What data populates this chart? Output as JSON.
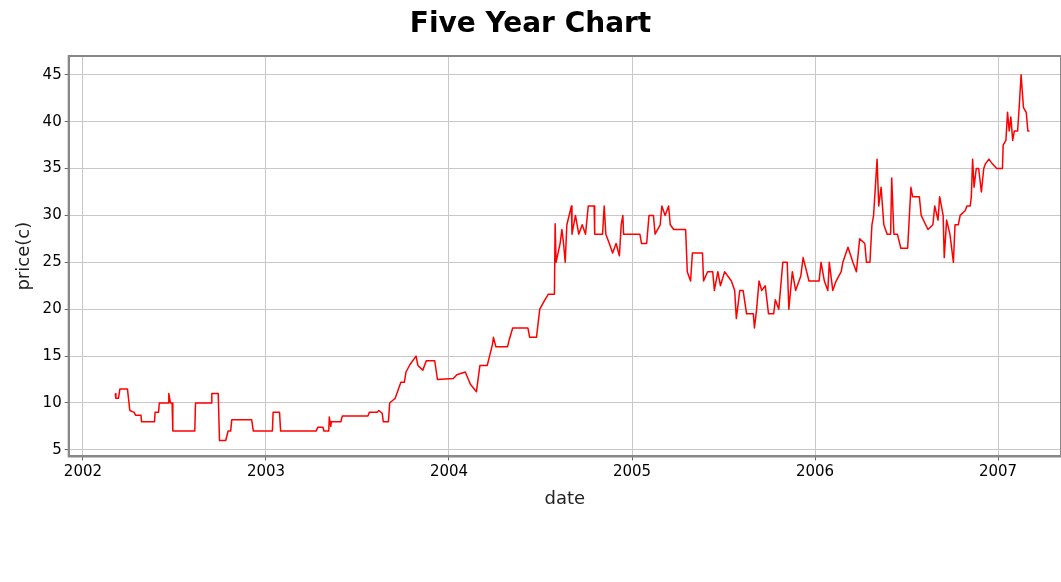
{
  "chart_data": {
    "type": "line",
    "title": "Five Year Chart",
    "xlabel": "date",
    "ylabel": "price(c)",
    "color": "#ff0000",
    "x": [
      2002.176,
      2002.18,
      2002.194,
      2002.202,
      2002.243,
      2002.256,
      2002.28,
      2002.287,
      2002.317,
      2002.32,
      2002.391,
      2002.394,
      2002.413,
      2002.417,
      2002.465,
      2002.469,
      2002.478,
      2002.487,
      2002.491,
      2002.611,
      2002.615,
      2002.7,
      2002.704,
      2002.739,
      2002.746,
      2002.78,
      2002.793,
      2002.807,
      2002.813,
      2002.922,
      2002.931,
      2003.035,
      2003.039,
      2003.074,
      2003.08,
      2003.274,
      2003.283,
      2003.311,
      2003.317,
      2003.343,
      2003.346,
      2003.354,
      2003.357,
      2003.409,
      2003.417,
      2003.557,
      2003.565,
      2003.607,
      2003.617,
      2003.635,
      2003.641,
      2003.669,
      2003.676,
      2003.706,
      2003.737,
      2003.756,
      2003.765,
      2003.787,
      2003.82,
      2003.83,
      2003.857,
      2003.876,
      2003.922,
      2003.937,
      2004.024,
      2004.043,
      2004.089,
      2004.117,
      2004.15,
      2004.169,
      2004.209,
      2004.237,
      2004.243,
      2004.256,
      2004.32,
      2004.33,
      2004.348,
      2004.431,
      2004.441,
      2004.478,
      2004.496,
      2004.524,
      2004.543,
      2004.576,
      2004.58,
      2004.585,
      2004.607,
      2004.617,
      2004.626,
      2004.635,
      2004.644,
      2004.669,
      2004.672,
      2004.691,
      2004.709,
      2004.728,
      2004.746,
      2004.761,
      2004.793,
      2004.796,
      2004.839,
      2004.848,
      2004.857,
      2004.876,
      2004.894,
      2004.913,
      2004.931,
      2004.941,
      2004.95,
      2004.954,
      2005.043,
      2005.052,
      2005.08,
      2005.093,
      2005.117,
      2005.126,
      2005.154,
      2005.163,
      2005.181,
      2005.2,
      2005.209,
      2005.228,
      2005.293,
      2005.302,
      2005.32,
      2005.33,
      2005.385,
      2005.391,
      2005.413,
      2005.441,
      2005.45,
      2005.469,
      2005.483,
      2005.506,
      2005.543,
      2005.561,
      2005.57,
      2005.589,
      2005.607,
      2005.626,
      2005.663,
      2005.669,
      2005.681,
      2005.694,
      2005.709,
      2005.728,
      2005.746,
      2005.774,
      2005.783,
      2005.802,
      2005.824,
      2005.848,
      2005.857,
      2005.876,
      2005.894,
      2005.922,
      2005.935,
      2005.967,
      2006.022,
      2006.033,
      2006.051,
      2006.07,
      2006.078,
      2006.097,
      2006.115,
      2006.143,
      2006.152,
      2006.18,
      2006.207,
      2006.226,
      2006.244,
      2006.272,
      2006.281,
      2006.3,
      2006.311,
      2006.32,
      2006.339,
      2006.348,
      2006.361,
      2006.376,
      2006.394,
      2006.413,
      2006.419,
      2006.431,
      2006.45,
      2006.469,
      2006.506,
      2006.524,
      2006.533,
      2006.57,
      2006.58,
      2006.617,
      2006.644,
      2006.654,
      2006.672,
      2006.681,
      2006.7,
      2006.706,
      2006.719,
      2006.737,
      2006.756,
      2006.765,
      2006.783,
      2006.793,
      2006.82,
      2006.83,
      2006.848,
      2006.854,
      2006.861,
      2006.869,
      2006.881,
      2006.894,
      2006.909,
      2006.922,
      2006.931,
      2006.95,
      2006.969,
      2006.993,
      2007.024,
      2007.028,
      2007.043,
      2007.052,
      2007.061,
      2007.07,
      2007.08,
      2007.089,
      2007.107,
      2007.117,
      2007.126,
      2007.139,
      2007.154,
      2007.163,
      2007.172
    ],
    "values": [
      11,
      10.5,
      10.5,
      11.5,
      11.5,
      9.2,
      9,
      8.7,
      8.7,
      8,
      8,
      9,
      9,
      10,
      10,
      11,
      10,
      10,
      7,
      7,
      10,
      10,
      11,
      11,
      6,
      6,
      7,
      7,
      8.2,
      8.2,
      7,
      7,
      9,
      9,
      7,
      7,
      7.4,
      7.4,
      7,
      7,
      8.5,
      7.5,
      8,
      8,
      8.6,
      8.6,
      9,
      9,
      9.2,
      8.9,
      8,
      8,
      10,
      10.5,
      12.2,
      12.2,
      13.3,
      14.1,
      15,
      14,
      13.5,
      14.5,
      14.5,
      12.5,
      12.6,
      13,
      13.3,
      12,
      11.2,
      14,
      14,
      16.2,
      17,
      16,
      16,
      16.8,
      18,
      18,
      17,
      17,
      20,
      21,
      21.6,
      21.6,
      29.1,
      25,
      27,
      28.5,
      27,
      25,
      29,
      31,
      28,
      30,
      28,
      29,
      28,
      31,
      31,
      28,
      28,
      31,
      28,
      27,
      26,
      27,
      25.7,
      29,
      30,
      28,
      28,
      27,
      27,
      30,
      30,
      28,
      29,
      31,
      30,
      31,
      29,
      28.5,
      28.5,
      24,
      23,
      26,
      26,
      23,
      24,
      24,
      22,
      24,
      22.5,
      24,
      23,
      22,
      19,
      22,
      22,
      19.5,
      19.5,
      18,
      20,
      23,
      22,
      22.5,
      19.5,
      19.5,
      21,
      20,
      25,
      25,
      20,
      24,
      22,
      23.5,
      25.5,
      23,
      23,
      25,
      23,
      22,
      25,
      22,
      23,
      24,
      25,
      26.6,
      25,
      24,
      27.5,
      27,
      25,
      25,
      29,
      30,
      36,
      31,
      33,
      29,
      28,
      28,
      34,
      28,
      28,
      26.5,
      26.5,
      33,
      32,
      32,
      30,
      28.5,
      29,
      31,
      29.5,
      32,
      30,
      25.5,
      29.5,
      28,
      25,
      29,
      29,
      30,
      30.5,
      31,
      31,
      32,
      36,
      33,
      35,
      35,
      32.5,
      35,
      35.5,
      36,
      35.5,
      35,
      35,
      37.5,
      38,
      41,
      39,
      40.5,
      38,
      39,
      39,
      42,
      45,
      41.5,
      41,
      39,
      39
    ],
    "xlim": [
      2001.922,
      2007.344
    ],
    "xticks": [
      2002,
      2003,
      2004,
      2005,
      2006,
      2007
    ],
    "ylim": [
      4.3,
      47
    ],
    "yticks": [
      5,
      10,
      15,
      20,
      25,
      30,
      35,
      40,
      45
    ],
    "grid": true,
    "marker": "none",
    "line_style": "solid"
  }
}
